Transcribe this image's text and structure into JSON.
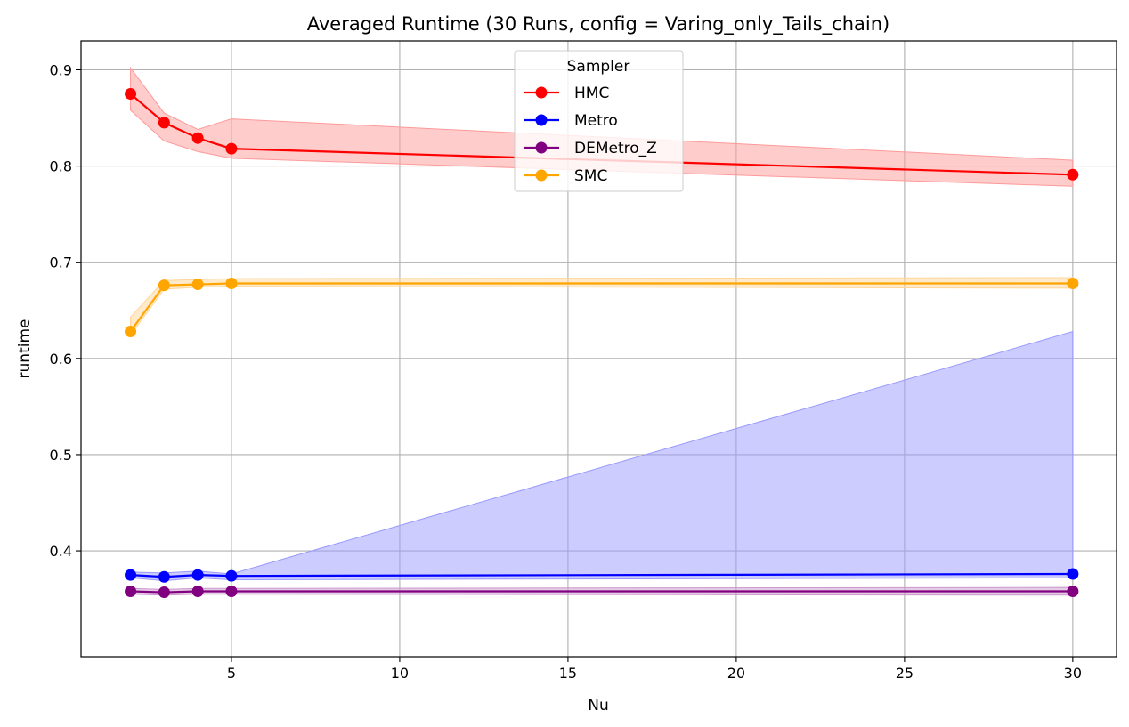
{
  "chart_data": {
    "type": "line",
    "title": "Averaged Runtime (30 Runs, config = Varing_only_Tails_chain)",
    "xlabel": "Nu",
    "ylabel": "runtime",
    "xlim": [
      0.53,
      31.3
    ],
    "ylim": [
      0.29,
      0.93
    ],
    "xticks": [
      5,
      10,
      15,
      20,
      25,
      30
    ],
    "yticks": [
      0.4,
      0.5,
      0.6,
      0.7,
      0.8,
      0.9
    ],
    "xtick_labels": [
      "5",
      "10",
      "15",
      "20",
      "25",
      "30"
    ],
    "ytick_labels": [
      "0.4",
      "0.5",
      "0.6",
      "0.7",
      "0.8",
      "0.9"
    ],
    "grid": true,
    "legend": {
      "title": "Sampler",
      "placement": "upper-center"
    },
    "x": [
      2,
      3,
      4,
      5,
      30
    ],
    "series": [
      {
        "name": "HMC",
        "color": "#ff0000",
        "band_color": "#ff9999",
        "values": [
          0.875,
          0.845,
          0.829,
          0.818,
          0.791
        ],
        "lower": [
          0.858,
          0.826,
          0.815,
          0.808,
          0.779
        ],
        "upper": [
          0.902,
          0.855,
          0.838,
          0.849,
          0.806
        ]
      },
      {
        "name": "Metro",
        "color": "#0000ff",
        "band_color": "#9999ff",
        "values": [
          0.375,
          0.373,
          0.375,
          0.374,
          0.376
        ],
        "lower": [
          0.372,
          0.369,
          0.372,
          0.37,
          0.372
        ],
        "upper": [
          0.378,
          0.377,
          0.379,
          0.376,
          0.628
        ]
      },
      {
        "name": "DEMetro_Z",
        "color": "#800080",
        "band_color": "#cc99cc",
        "values": [
          0.358,
          0.357,
          0.358,
          0.358,
          0.358
        ],
        "lower": [
          0.355,
          0.354,
          0.355,
          0.355,
          0.354
        ],
        "upper": [
          0.361,
          0.36,
          0.361,
          0.361,
          0.362
        ]
      },
      {
        "name": "SMC",
        "color": "#ffa500",
        "band_color": "#ffd699",
        "values": [
          0.628,
          0.676,
          0.677,
          0.678,
          0.678
        ],
        "lower": [
          0.624,
          0.672,
          0.674,
          0.675,
          0.673
        ],
        "upper": [
          0.643,
          0.681,
          0.682,
          0.683,
          0.684
        ]
      }
    ]
  }
}
